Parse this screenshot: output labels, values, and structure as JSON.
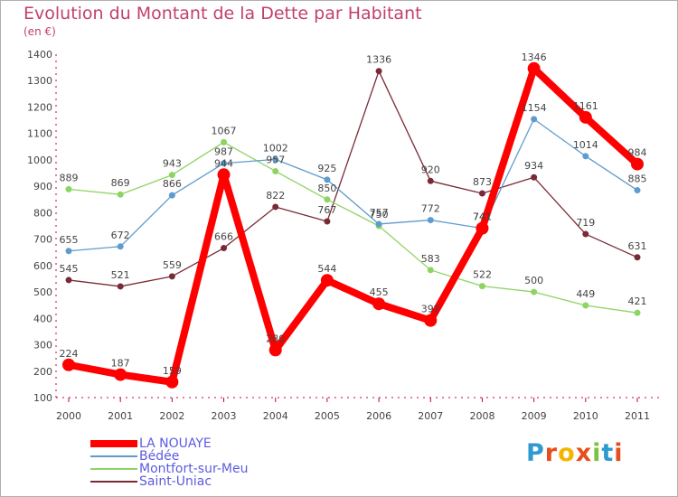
{
  "header": {
    "title": "Evolution du Montant de la Dette par Habitant",
    "unit": "(en €)"
  },
  "logo": {
    "text": "Proxiti"
  },
  "chart_data": {
    "type": "line",
    "x": [
      "2000",
      "2001",
      "2002",
      "2003",
      "2004",
      "2005",
      "2006",
      "2007",
      "2008",
      "2009",
      "2010",
      "2011"
    ],
    "ylim": [
      100,
      1400
    ],
    "yticks": [
      100,
      200,
      300,
      400,
      500,
      600,
      700,
      800,
      900,
      1000,
      1100,
      1200,
      1300,
      1400
    ],
    "grid": false,
    "legend_position": "bottom-left",
    "series": [
      {
        "name": "Saint-Uniac",
        "color": "#7a2a36",
        "values": [
          545,
          521,
          559,
          666,
          822,
          767,
          1336,
          920,
          873,
          934,
          719,
          631
        ]
      },
      {
        "name": "Montfort-sur-Meu",
        "color": "#8ed464",
        "values": [
          889,
          869,
          943,
          1067,
          957,
          850,
          750,
          583,
          522,
          500,
          449,
          421
        ]
      },
      {
        "name": "Bédée",
        "color": "#5f9bcc",
        "values": [
          655,
          672,
          866,
          987,
          1002,
          925,
          757,
          772,
          741,
          1154,
          1014,
          885
        ]
      },
      {
        "name": "LA NOUAYE",
        "color": "#ff0000",
        "values": [
          224,
          187,
          159,
          944,
          280,
          544,
          455,
          392,
          741,
          1346,
          1161,
          984
        ]
      }
    ],
    "legend_order": [
      "LA NOUAYE",
      "Bédée",
      "Montfort-sur-Meu",
      "Saint-Uniac"
    ]
  }
}
